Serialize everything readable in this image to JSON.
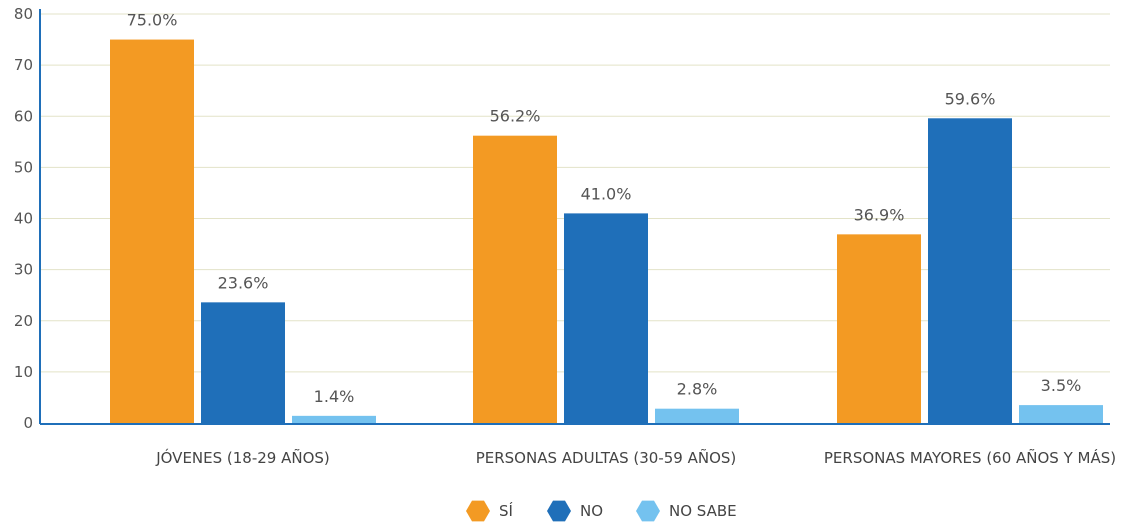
{
  "chart_data": {
    "type": "bar",
    "categories": [
      "JÓVENES (18-29 AÑOS)",
      "PERSONAS ADULTAS (30-59 AÑOS)",
      "PERSONAS MAYORES (60 AÑOS Y MÁS)"
    ],
    "series": [
      {
        "name": "SÍ",
        "values": [
          75.0,
          56.2,
          36.9
        ],
        "labels": [
          "75.0%",
          "56.2%",
          "36.9%"
        ],
        "color": "#f39a23"
      },
      {
        "name": "NO",
        "values": [
          23.6,
          41.0,
          59.6
        ],
        "labels": [
          "23.6%",
          "41.0%",
          "59.6%"
        ],
        "color": "#1f6fb9"
      },
      {
        "name": "NO SABE",
        "values": [
          1.4,
          2.8,
          3.5
        ],
        "labels": [
          "1.4%",
          "2.8%",
          "3.5%"
        ],
        "color": "#74c2ef"
      }
    ],
    "yticks": [
      "0",
      "10",
      "20",
      "30",
      "40",
      "50",
      "60",
      "70",
      "80"
    ],
    "ylim": [
      0,
      80
    ],
    "grid": true,
    "legend": "bottom-center",
    "legend_shape": "hexagon",
    "axis_color": "#1f6fb9",
    "grid_color": "#e3e3c8"
  }
}
